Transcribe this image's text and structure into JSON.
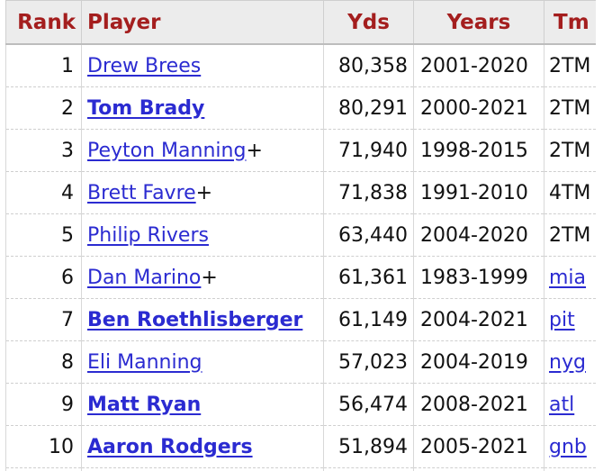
{
  "headers": {
    "rank": "Rank",
    "player": "Player",
    "yds": "Yds",
    "years": "Years",
    "tm": "Tm"
  },
  "rows": [
    {
      "rank": "1",
      "player": "Drew Brees",
      "active": false,
      "hof": "",
      "yds": "80,358",
      "years": "2001-2020",
      "tm": "2TM",
      "tm_link": false
    },
    {
      "rank": "2",
      "player": "Tom Brady",
      "active": true,
      "hof": "",
      "yds": "80,291",
      "years": "2000-2021",
      "tm": "2TM",
      "tm_link": false
    },
    {
      "rank": "3",
      "player": "Peyton Manning",
      "active": false,
      "hof": "+",
      "yds": "71,940",
      "years": "1998-2015",
      "tm": "2TM",
      "tm_link": false
    },
    {
      "rank": "4",
      "player": "Brett Favre",
      "active": false,
      "hof": "+",
      "yds": "71,838",
      "years": "1991-2010",
      "tm": "4TM",
      "tm_link": false
    },
    {
      "rank": "5",
      "player": "Philip Rivers",
      "active": false,
      "hof": "",
      "yds": "63,440",
      "years": "2004-2020",
      "tm": "2TM",
      "tm_link": false
    },
    {
      "rank": "6",
      "player": "Dan Marino",
      "active": false,
      "hof": "+",
      "yds": "61,361",
      "years": "1983-1999",
      "tm": "mia",
      "tm_link": true
    },
    {
      "rank": "7",
      "player": "Ben Roethlisberger",
      "active": true,
      "hof": "",
      "yds": "61,149",
      "years": "2004-2021",
      "tm": "pit",
      "tm_link": true
    },
    {
      "rank": "8",
      "player": "Eli Manning",
      "active": false,
      "hof": "",
      "yds": "57,023",
      "years": "2004-2019",
      "tm": "nyg",
      "tm_link": true
    },
    {
      "rank": "9",
      "player": "Matt Ryan",
      "active": true,
      "hof": "",
      "yds": "56,474",
      "years": "2008-2021",
      "tm": "atl",
      "tm_link": true
    },
    {
      "rank": "10",
      "player": "Aaron Rodgers",
      "active": true,
      "hof": "",
      "yds": "51,894",
      "years": "2005-2021",
      "tm": "gnb",
      "tm_link": true
    }
  ],
  "colors": {
    "header_text": "#a41e1e",
    "header_bg": "#ececec",
    "link": "#2b2bd1"
  }
}
